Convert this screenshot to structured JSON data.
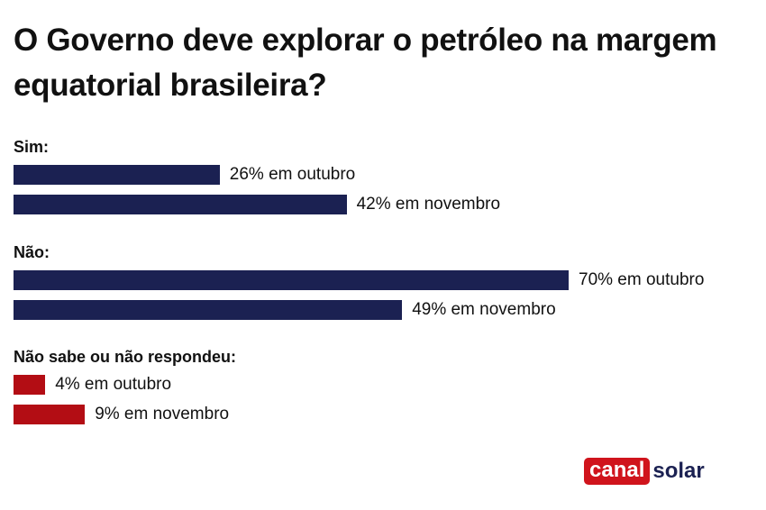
{
  "chart_data": {
    "type": "bar",
    "orientation": "horizontal",
    "title": "O Governo deve explorar o petróleo na margem equatorial brasileira?",
    "groups": [
      {
        "label": "Sim:",
        "color": "#1b2152",
        "items": [
          {
            "value": 26,
            "text": "26% em outubro"
          },
          {
            "value": 42,
            "text": "42% em novembro"
          }
        ]
      },
      {
        "label": "Não:",
        "color": "#1b2152",
        "items": [
          {
            "value": 70,
            "text": "70% em outubro"
          },
          {
            "value": 49,
            "text": "49% em novembro"
          }
        ]
      },
      {
        "label": "Não sabe ou não respondeu:",
        "color": "#b30d14",
        "items": [
          {
            "value": 4,
            "text": "4% em outubro"
          },
          {
            "value": 9,
            "text": "9% em novembro"
          }
        ]
      }
    ],
    "unit": "%"
  },
  "logo": {
    "part1": "canal",
    "part2": "solar"
  }
}
